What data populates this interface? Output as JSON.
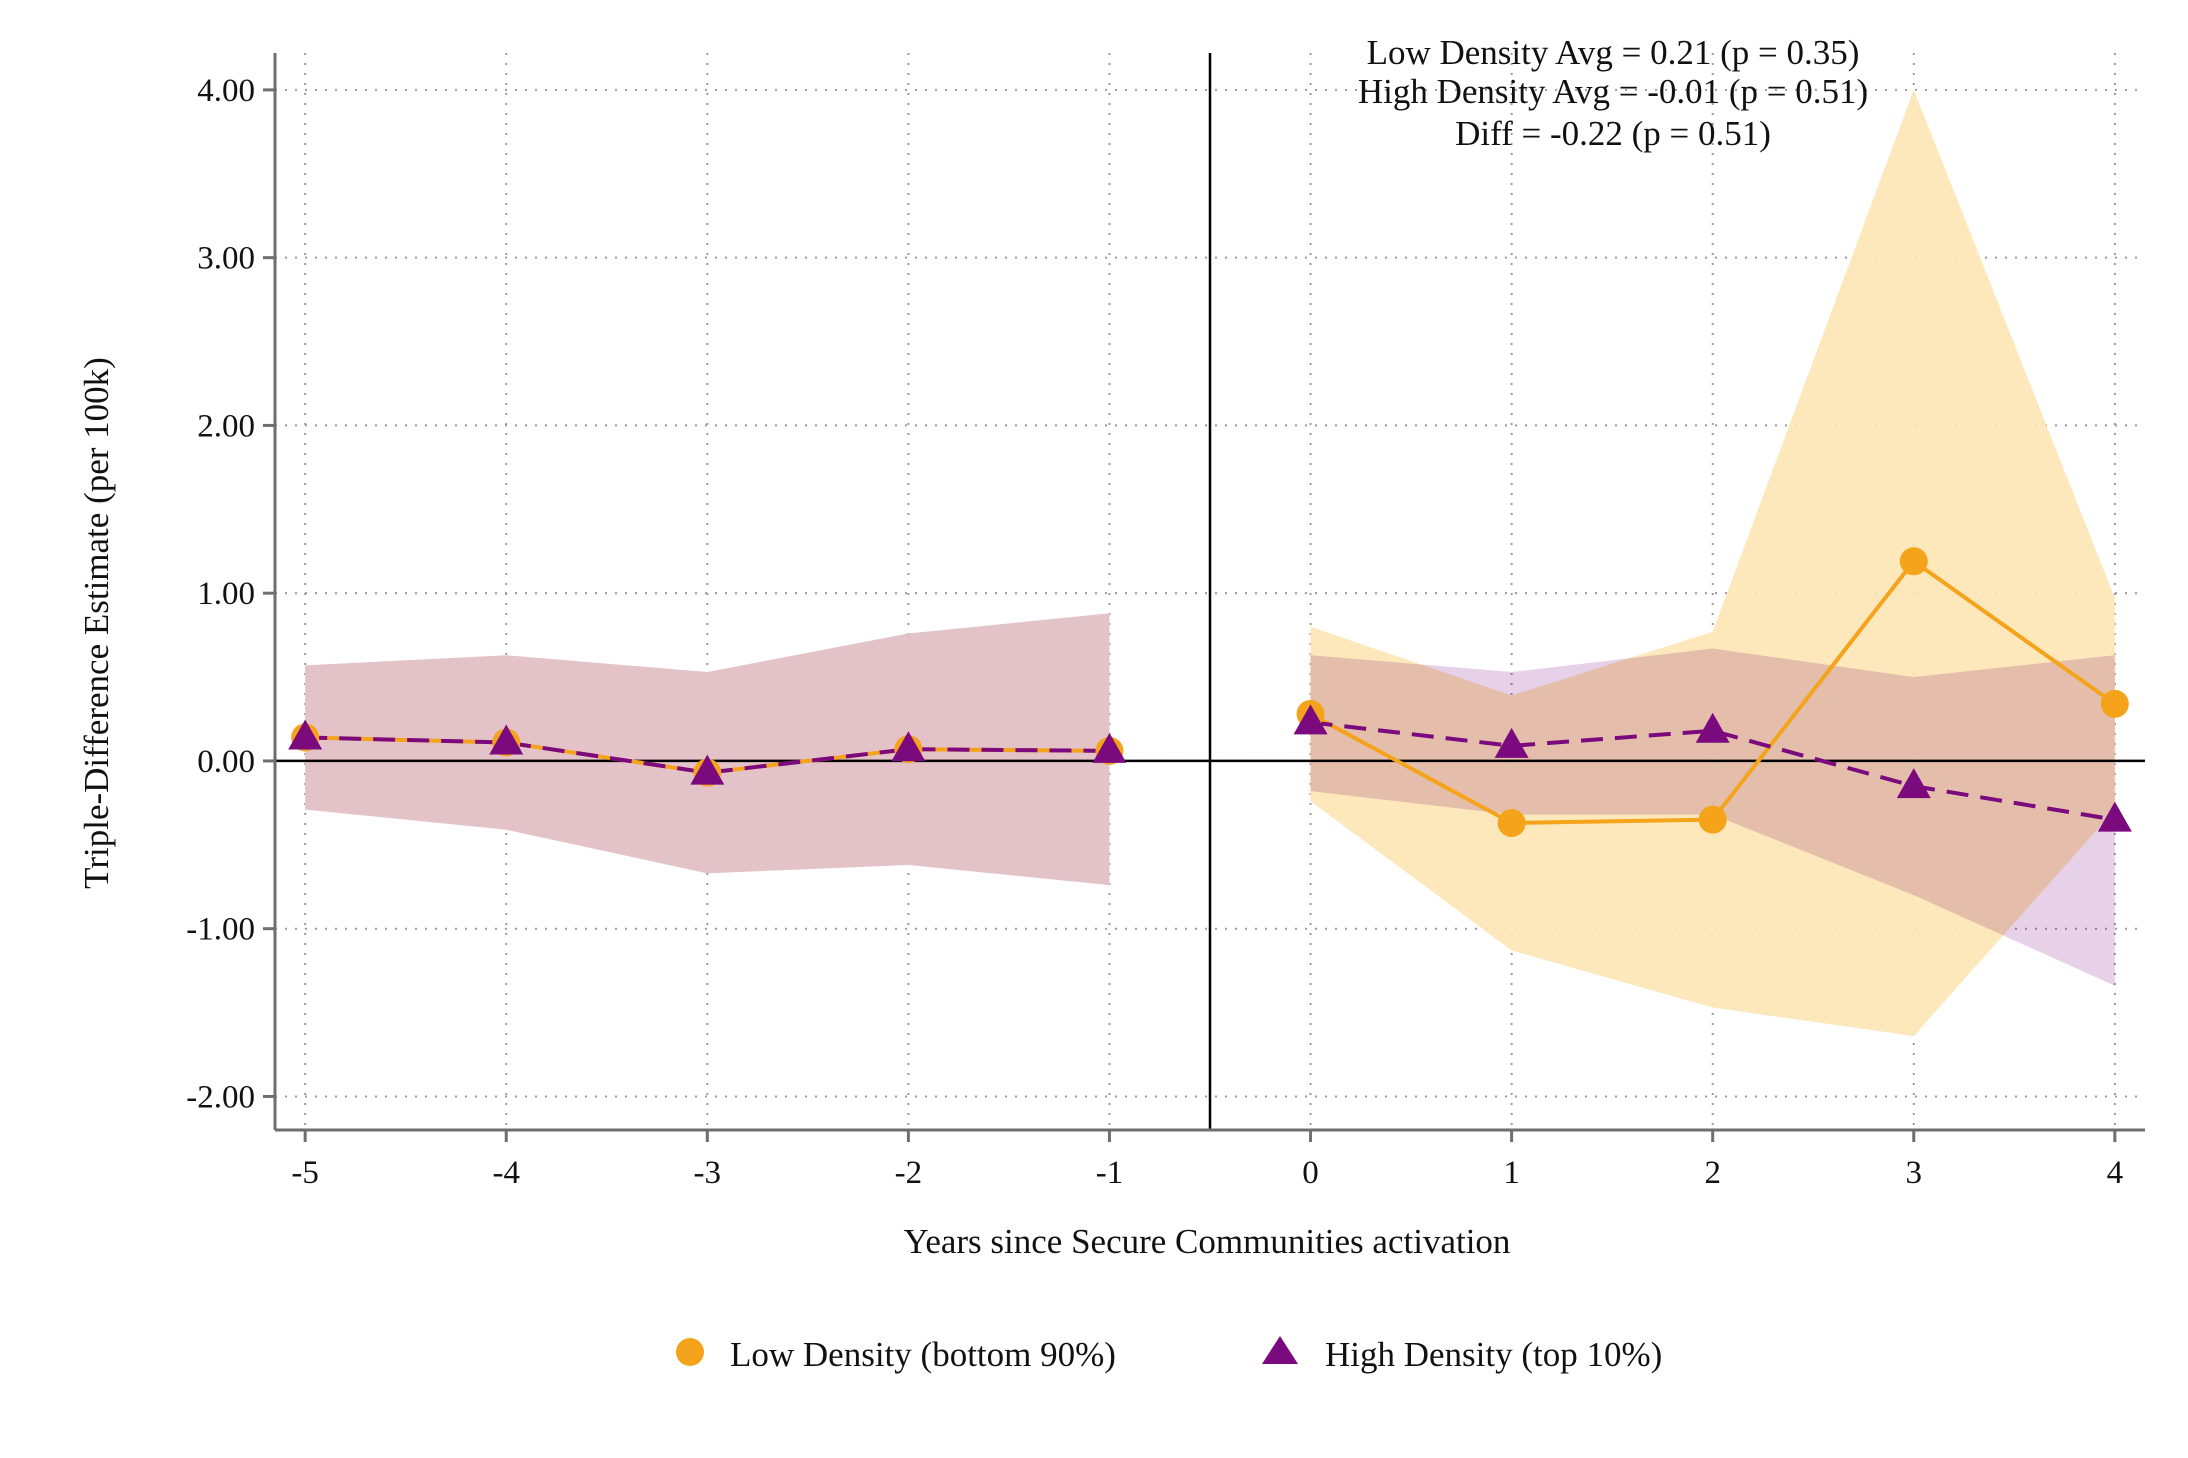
{
  "chart_data": {
    "type": "line",
    "xlabel": "Years since Secure Communities activation",
    "ylabel": "Triple-Difference Estimate (per 100k)",
    "x": [
      -5,
      -4,
      -3,
      -2,
      -1,
      0,
      1,
      2,
      3,
      4
    ],
    "x_tick_labels": [
      "-5",
      "-4",
      "-3",
      "-2",
      "-1",
      "0",
      "1",
      "2",
      "3",
      "4"
    ],
    "xlim": [
      -5.15,
      4.15
    ],
    "ylim": [
      -2.2,
      4.22
    ],
    "y_ticks": [
      -2,
      -1,
      0,
      1,
      2,
      3,
      4
    ],
    "y_tick_labels": [
      "-2.00",
      "-1.00",
      "0.00",
      "1.00",
      "2.00",
      "3.00",
      "4.00"
    ],
    "grid": true,
    "vertical_reference_x": -0.5,
    "horizontal_reference_y": 0,
    "annotations": [
      "Low Density Avg = 0.21 (p = 0.35)",
      "High Density Avg = -0.01 (p = 0.51)",
      "Diff = -0.22 (p = 0.51)"
    ],
    "legend_position": "bottom-center",
    "series": [
      {
        "name": "Low Density (bottom 90%)",
        "color": "#F5A31A",
        "band_color": "#FCE6B4",
        "marker": "circle",
        "line_style": "solid",
        "values": [
          0.14,
          0.11,
          -0.07,
          0.07,
          0.06,
          0.28,
          -0.37,
          -0.35,
          1.19,
          0.34
        ],
        "ci_lower": [
          -0.29,
          -0.41,
          -0.67,
          -0.62,
          -0.74,
          -0.24,
          -1.13,
          -1.47,
          -1.64,
          -0.29
        ],
        "ci_upper": [
          0.57,
          0.63,
          0.53,
          0.76,
          0.88,
          0.8,
          0.39,
          0.77,
          4.0,
          0.97
        ]
      },
      {
        "name": "High Density (top 10%)",
        "color": "#7B0A7E",
        "band_color": "#D7B3D8",
        "marker": "triangle",
        "line_style": "dashed",
        "values": [
          0.14,
          0.11,
          -0.07,
          0.07,
          0.06,
          0.23,
          0.09,
          0.18,
          -0.15,
          -0.35
        ],
        "ci_lower": [
          -0.29,
          -0.41,
          -0.67,
          -0.62,
          -0.74,
          -0.18,
          -0.32,
          -0.32,
          -0.8,
          -1.34
        ],
        "ci_upper": [
          0.57,
          0.63,
          0.53,
          0.76,
          0.88,
          0.63,
          0.53,
          0.67,
          0.5,
          0.63
        ]
      }
    ],
    "overlap_band_color": "#E3C3C8"
  }
}
